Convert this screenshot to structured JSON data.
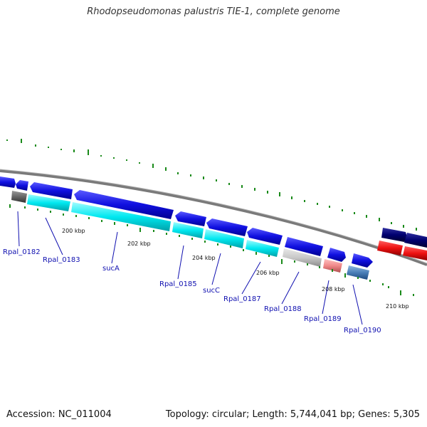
{
  "map": {
    "title": "Rhodopseudomonas palustris TIE-1, complete genome",
    "accession_text": "Accession: NC_011004",
    "summary_text": "Topology: circular; Length: 5,744,041 bp; Genes: 5,305"
  },
  "scale_labels": [
    "200 kbp",
    "202 kbp",
    "204 kbp",
    "206 kbp",
    "208 kbp",
    "210 kbp"
  ],
  "gene_labels": [
    "Rpal_0182",
    "Rpal_0183",
    "sucA",
    "Rpal_0185",
    "sucC",
    "Rpal_0187",
    "Rpal_0188",
    "Rpal_0189",
    "Rpal_0190"
  ],
  "colors": {
    "backbone": "#888888",
    "gene_forward": "#1010e0",
    "cds_cyan": "#00e8f0",
    "gc_tick": "#1a8a1a",
    "label_blue": "#1010b0",
    "rna_red": "#ee1111",
    "navy": "#000070"
  }
}
